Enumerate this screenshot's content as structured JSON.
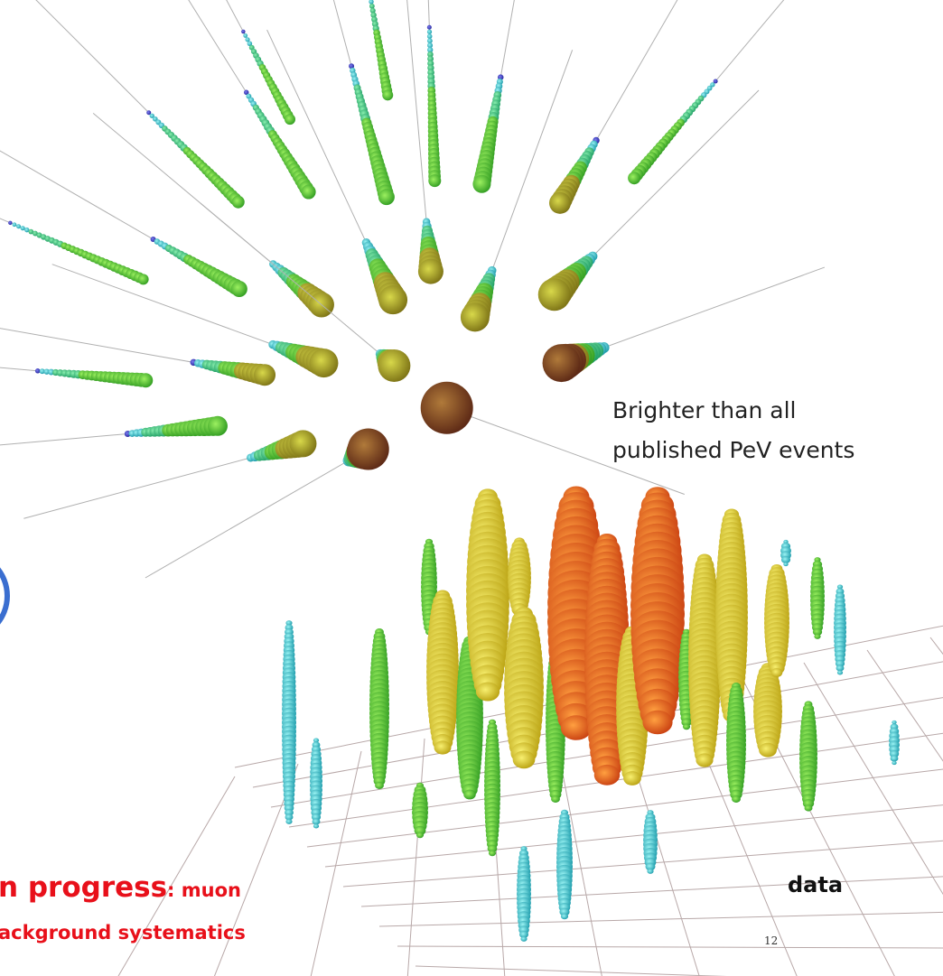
{
  "slide": {
    "caption": [
      "Brighter than all",
      "published PeV events"
    ],
    "note": {
      "highlight": "n progress",
      "line1_rest": ": muon",
      "line2": "ackground systematics"
    },
    "label": "data",
    "page_number": "12"
  }
}
